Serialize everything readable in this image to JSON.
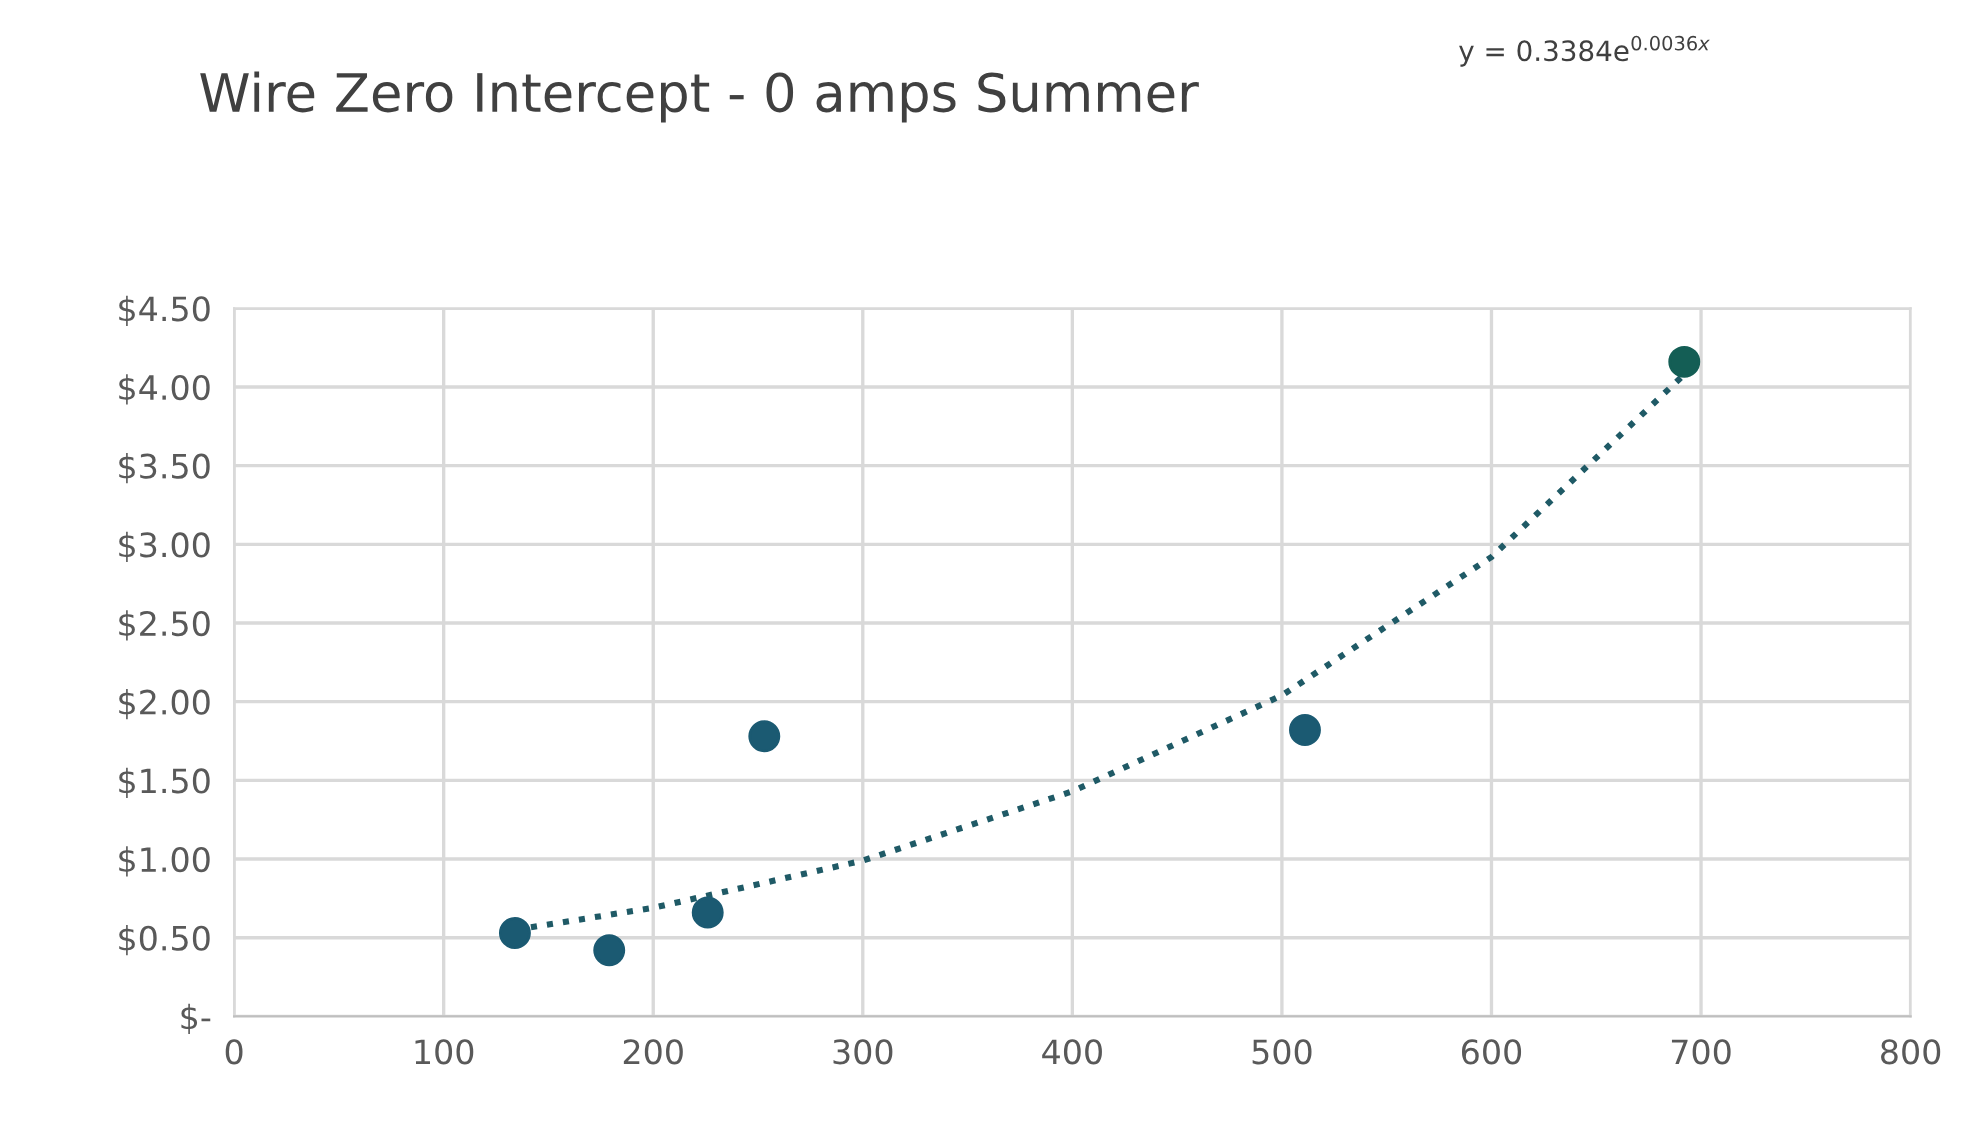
{
  "chart_data": {
    "type": "scatter",
    "title": "Wire Zero Intercept - 0 amps Summer",
    "annotations": [
      "y = 0.3384e$^{0.0036x}$"
    ],
    "series": [
      {
        "color": "#1b5a72",
        "x": [
          134,
          179,
          226,
          253,
          511,
          692
        ],
        "values": [
          0.53,
          0.42,
          0.66,
          1.78,
          1.82,
          4.16
        ],
        "colors": [
          "#1b5a72",
          "#1b5a72",
          "#1b5a72",
          "#1b5a72",
          "#1b5a72",
          "#145e55"
        ]
      },
      {
        "type": "line",
        "color": "#1f5a66",
        "line_style": "dotted",
        "marker": "none",
        "x": [
          134,
          200,
          300,
          400,
          500,
          600,
          692
        ],
        "values": [
          0.55,
          0.69,
          0.99,
          1.43,
          2.04,
          2.92,
          4.08
        ]
      }
    ],
    "xlim": [
      0,
      800
    ],
    "xticks": [
      0,
      100,
      200,
      300,
      400,
      500,
      600,
      700,
      800
    ],
    "ylim": [
      0,
      4.5
    ],
    "yticks": [
      {
        "value": 0,
        "label": "$-"
      },
      {
        "value": 0.5,
        "label": "$0.50"
      },
      {
        "value": 1,
        "label": "$1.00"
      },
      {
        "value": 1.5,
        "label": "$1.50"
      },
      {
        "value": 2,
        "label": "$2.00"
      },
      {
        "value": 2.5,
        "label": "$2.50"
      },
      {
        "value": 3,
        "label": "$3.00"
      },
      {
        "value": 3.5,
        "label": "$3.50"
      },
      {
        "value": 4,
        "label": "$4.00"
      },
      {
        "value": 4.5,
        "label": "$4.50"
      }
    ],
    "grid": true,
    "marker": "circle",
    "legend": false
  }
}
